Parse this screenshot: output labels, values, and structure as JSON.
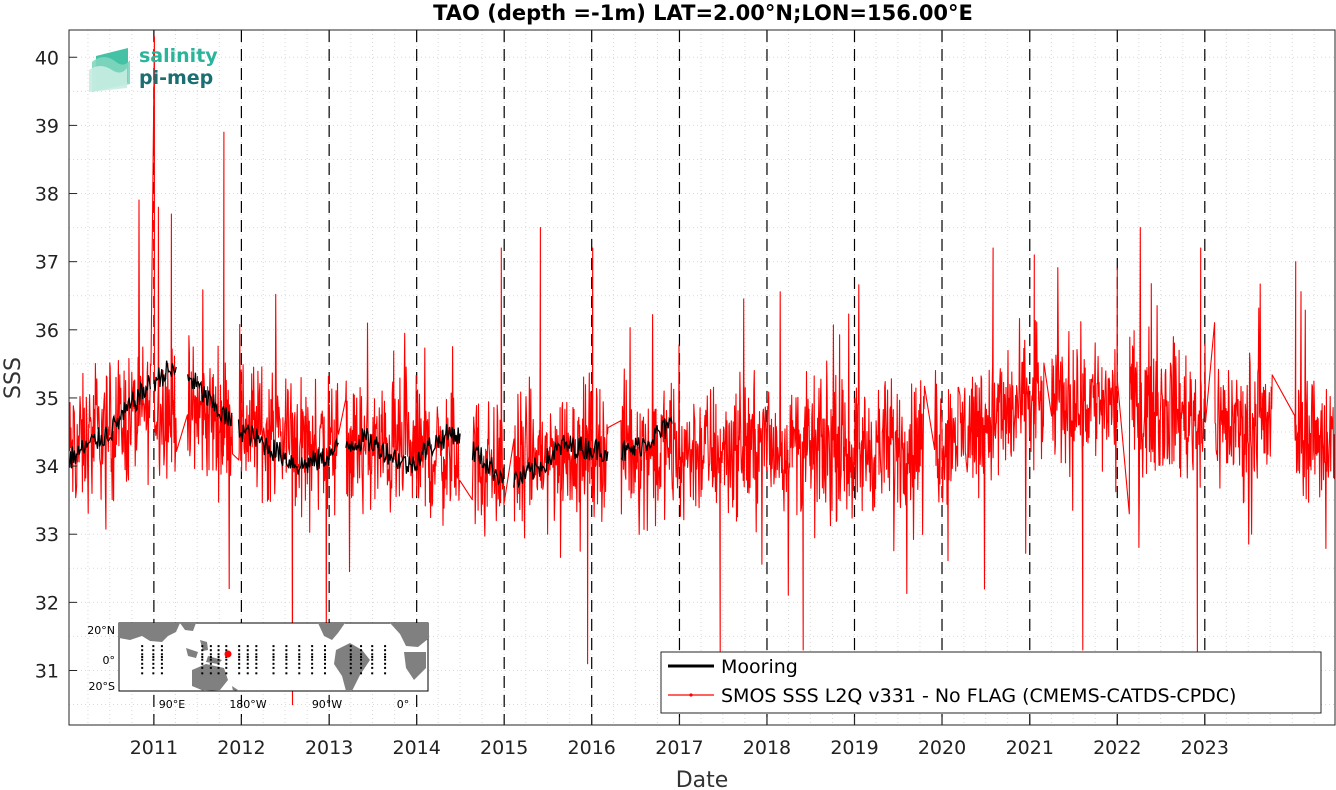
{
  "chart_data": {
    "type": "line",
    "title": "TAO (depth =-1m) LAT=2.00°N;LON=156.00°E",
    "xlabel": "Date",
    "ylabel": "SSS",
    "xlim": [
      "2010-01-12",
      "2024-06-27"
    ],
    "ylim": [
      30.2,
      40.4
    ],
    "x_ticks": [
      "2011",
      "2012",
      "2013",
      "2014",
      "2015",
      "2016",
      "2017",
      "2018",
      "2019",
      "2020",
      "2021",
      "2022",
      "2023"
    ],
    "y_ticks": [
      "31",
      "32",
      "33",
      "34",
      "35",
      "36",
      "37",
      "38",
      "39",
      "40"
    ],
    "grid": true,
    "legend": {
      "position": "bottom-right",
      "entries": [
        "Mooring",
        "SMOS SSS L2Q v331 - No FLAG  (CMEMS-CATDS-CPDC)"
      ]
    },
    "colors": {
      "mooring": "#000000",
      "smos": "#ff0000"
    },
    "series": [
      {
        "name": "Mooring",
        "color": "#000000",
        "x": [
          "2010-01-15",
          "2010-04-01",
          "2010-07-01",
          "2010-10-01",
          "2010-12-15",
          "2011-03-01",
          "2011-06-01",
          "2011-09-01",
          "2011-12-01",
          "2012-03-01",
          "2012-06-01",
          "2012-09-01",
          "2012-12-01",
          "2013-03-01",
          "2013-06-01",
          "2013-09-01",
          "2013-12-01",
          "2014-03-01",
          "2014-06-01",
          "2014-09-01",
          "2014-12-01",
          "2015-03-01",
          "2015-06-01",
          "2015-09-01",
          "2016-06-01",
          "2016-09-01",
          "2016-12-01"
        ],
        "values": [
          34.1,
          34.3,
          34.5,
          34.9,
          35.2,
          35.4,
          35.3,
          34.9,
          34.6,
          34.4,
          34.2,
          34.0,
          34.1,
          34.3,
          34.4,
          34.2,
          34.0,
          34.3,
          34.5,
          34.2,
          33.9,
          33.8,
          34.0,
          34.3,
          34.2,
          34.4,
          34.6
        ]
      },
      {
        "name": "SMOS SSS L2Q v331 - No FLAG  (CMEMS-CATDS-CPDC)",
        "color": "#ff0000",
        "x": [
          "2010-01-12",
          "2011-01-01",
          "2012-01-01",
          "2013-01-01",
          "2014-01-01",
          "2015-01-01",
          "2016-01-01",
          "2017-01-01",
          "2018-01-01",
          "2019-01-01",
          "2020-01-01",
          "2021-01-01",
          "2022-01-01",
          "2023-01-01",
          "2024-06-27"
        ],
        "values": [
          34.2,
          34.9,
          34.6,
          34.3,
          34.2,
          34.0,
          34.3,
          34.2,
          34.3,
          34.2,
          34.4,
          34.9,
          35.0,
          34.7,
          34.4
        ],
        "noise_amplitude": 0.85,
        "spikes": [
          {
            "x": "2011-01-03",
            "value": 40.3
          },
          {
            "x": "2011-01-20",
            "value": 37.8
          },
          {
            "x": "2011-03-15",
            "value": 37.7
          },
          {
            "x": "2011-10-20",
            "value": 38.9
          },
          {
            "x": "2013-06-10",
            "value": 36.1
          },
          {
            "x": "2014-12-20",
            "value": 37.2
          },
          {
            "x": "2015-06-01",
            "value": 37.5
          },
          {
            "x": "2016-01-05",
            "value": 37.2
          },
          {
            "x": "2020-08-01",
            "value": 37.2
          },
          {
            "x": "2021-01-20",
            "value": 37.1
          },
          {
            "x": "2022-01-01",
            "value": 36.9
          },
          {
            "x": "2022-12-15",
            "value": 37.2
          },
          {
            "x": "2024-01-15",
            "value": 37.0
          },
          {
            "x": "2012-08-01",
            "value": 30.5
          },
          {
            "x": "2012-12-20",
            "value": 31.3
          },
          {
            "x": "2015-12-15",
            "value": 31.1
          },
          {
            "x": "2017-06-20",
            "value": 31.2
          },
          {
            "x": "2018-06-01",
            "value": 31.3
          },
          {
            "x": "2021-08-10",
            "value": 31.3
          },
          {
            "x": "2022-12-01",
            "value": 31.2
          }
        ]
      }
    ],
    "inset_map": {
      "lat_ticks": [
        "20°N",
        "0°",
        "20°S"
      ],
      "lon_ticks": [
        "90°E",
        "180°W",
        "90°W",
        "0°"
      ],
      "marker": {
        "lat": 2.0,
        "lon": 156.0,
        "color": "#ff0000"
      }
    }
  },
  "logo": {
    "line1": "salinity",
    "line2": "pi-mep"
  }
}
